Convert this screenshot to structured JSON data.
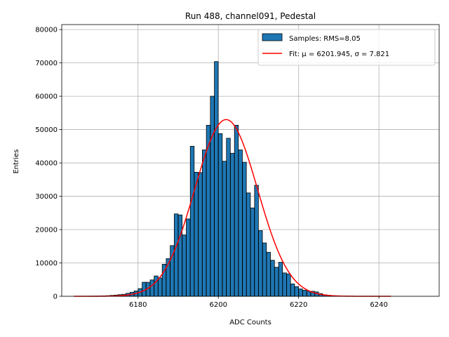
{
  "chart_data": {
    "type": "bar",
    "title": "Run 488, channel091, Pedestal",
    "xlabel": "ADC Counts",
    "ylabel": "Entries",
    "xlim": [
      6161,
      6255
    ],
    "ylim": [
      0,
      81500
    ],
    "grid": true,
    "legend_position": "top-right",
    "x_ticks": [
      6180,
      6200,
      6220,
      6240
    ],
    "y_ticks": [
      0,
      10000,
      20000,
      30000,
      40000,
      50000,
      60000,
      70000,
      80000
    ],
    "bin_width": 0.96,
    "bar_color": "#1f77b4",
    "bar_edge_color": "#000000",
    "fit_color": "#ff0000",
    "histogram": {
      "name": "Samples: RMS=8.05",
      "bin_centers": [
        6167.5,
        6168.5,
        6169.5,
        6170.5,
        6171.5,
        6172.5,
        6173.5,
        6174.5,
        6175.5,
        6176.5,
        6177.5,
        6178.5,
        6179.5,
        6180.5,
        6181.5,
        6182.5,
        6183.5,
        6184.5,
        6185.5,
        6186.5,
        6187.5,
        6188.5,
        6189.5,
        6190.5,
        6191.5,
        6192.5,
        6193.5,
        6194.5,
        6195.5,
        6196.5,
        6197.5,
        6198.5,
        6199.5,
        6200.5,
        6201.5,
        6202.5,
        6203.5,
        6204.5,
        6205.5,
        6206.5,
        6207.5,
        6208.5,
        6209.5,
        6210.5,
        6211.5,
        6212.5,
        6213.5,
        6214.5,
        6215.5,
        6216.5,
        6217.5,
        6218.5,
        6219.5,
        6220.5,
        6221.5,
        6222.5,
        6223.5,
        6224.5,
        6225.5,
        6226.5,
        6227.5,
        6228.5,
        6229.5,
        6230.5,
        6231.5,
        6232.5,
        6233.5,
        6234.5
      ],
      "counts": [
        30,
        40,
        60,
        90,
        130,
        180,
        260,
        350,
        480,
        600,
        900,
        1200,
        1600,
        2300,
        4200,
        4200,
        4900,
        6100,
        5500,
        9600,
        11300,
        15200,
        24700,
        24400,
        18400,
        23200,
        45000,
        37200,
        37100,
        43900,
        51300,
        60000,
        70400,
        48800,
        40500,
        47400,
        42900,
        51300,
        43900,
        40200,
        31000,
        26500,
        33300,
        19700,
        16000,
        13200,
        10800,
        8700,
        10200,
        7000,
        6700,
        3700,
        2900,
        2200,
        1800,
        1500,
        1500,
        1300,
        800,
        450,
        300,
        200,
        130,
        90,
        60,
        40,
        30,
        20
      ]
    },
    "fit": {
      "name": "Fit: μ = 6201.945, σ = 7.821",
      "mu": 6201.945,
      "sigma": 7.821,
      "amplitude": 53000,
      "x_range": [
        6164,
        6243
      ]
    }
  }
}
